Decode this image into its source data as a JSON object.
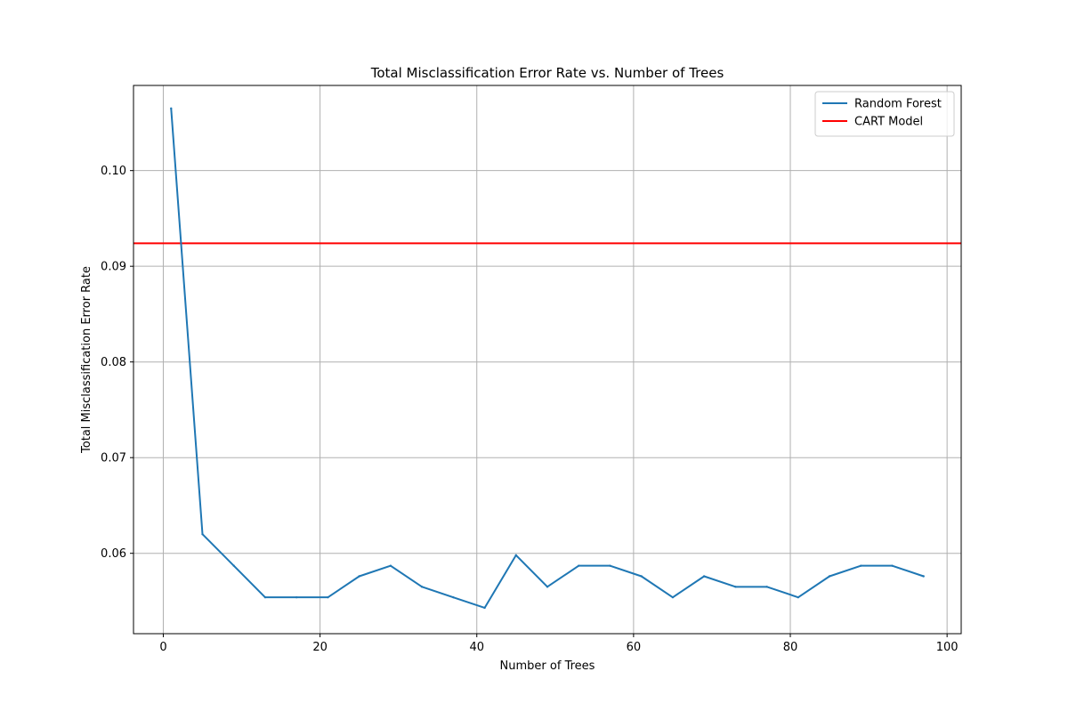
{
  "chart_data": {
    "type": "line",
    "title": "Total Misclassification Error Rate vs. Number of Trees",
    "xlabel": "Number of Trees",
    "ylabel": "Total Misclassification Error Rate",
    "xlim": [
      -3.8,
      101.8
    ],
    "ylim": [
      0.0516,
      0.1089
    ],
    "xticks": [
      0,
      20,
      40,
      60,
      80,
      100
    ],
    "yticks": [
      0.06,
      0.07,
      0.08,
      0.09,
      0.1
    ],
    "ytick_labels": [
      "0.06",
      "0.07",
      "0.08",
      "0.09",
      "0.10"
    ],
    "grid": true,
    "legend_position": "top-right",
    "series": [
      {
        "name": "Random Forest",
        "color": "#1f77b4",
        "x": [
          1,
          5,
          9,
          13,
          17,
          21,
          25,
          29,
          33,
          37,
          41,
          45,
          49,
          53,
          57,
          61,
          65,
          69,
          73,
          77,
          81,
          85,
          89,
          93,
          97
        ],
        "y": [
          0.1065,
          0.062,
          0.0587,
          0.0554,
          0.0554,
          0.0554,
          0.0576,
          0.0587,
          0.0565,
          0.0554,
          0.0543,
          0.0598,
          0.0565,
          0.0587,
          0.0587,
          0.0576,
          0.0554,
          0.0576,
          0.0565,
          0.0565,
          0.0554,
          0.0576,
          0.0587,
          0.0587,
          0.0576
        ]
      }
    ],
    "reference_lines": [
      {
        "name": "CART Model",
        "color": "#ff0000",
        "orientation": "horizontal",
        "y": 0.0924
      }
    ]
  }
}
